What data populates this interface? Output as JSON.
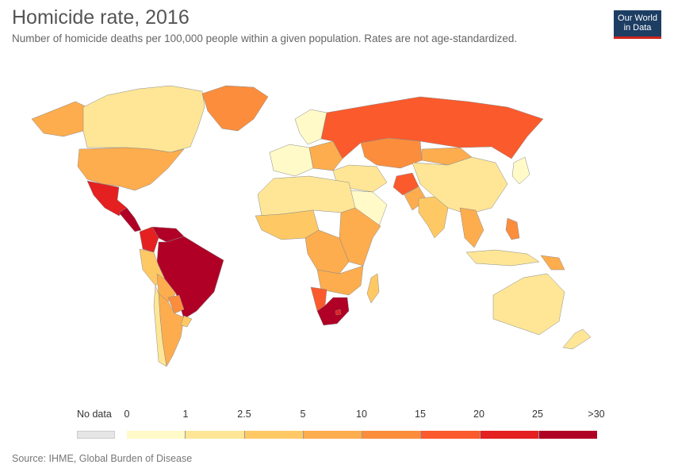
{
  "header": {
    "title": "Homicide rate, 2016",
    "subtitle": "Number of homicide deaths per 100,000 people within a given population. Rates are not age-standardized."
  },
  "logo": {
    "line1": "Our World",
    "line2": "in Data"
  },
  "source": "Source: IHME, Global Burden of Disease",
  "legend": {
    "no_data_label": "No data",
    "no_data_color": "#e6e6e6",
    "ticks": [
      "0",
      "1",
      "2.5",
      "5",
      "10",
      "15",
      "20",
      "25",
      ">30"
    ],
    "colors": [
      "#fffac8",
      "#fee696",
      "#fec965",
      "#fdad4e",
      "#fc8d3c",
      "#fb5a2c",
      "#e42020",
      "#b00026"
    ]
  },
  "regions": [
    {
      "name": "Canada",
      "bin": 1
    },
    {
      "name": "United States",
      "bin": 3
    },
    {
      "name": "Mexico",
      "bin": 6
    },
    {
      "name": "Central America",
      "bin": 7
    },
    {
      "name": "Greenland",
      "bin": 4
    },
    {
      "name": "Alaska",
      "bin": 3
    },
    {
      "name": "Colombia",
      "bin": 6
    },
    {
      "name": "Venezuela",
      "bin": 7
    },
    {
      "name": "Brazil",
      "bin": 7
    },
    {
      "name": "Peru",
      "bin": 2
    },
    {
      "name": "Bolivia",
      "bin": 3
    },
    {
      "name": "Argentina",
      "bin": 3
    },
    {
      "name": "Chile",
      "bin": 1
    },
    {
      "name": "Paraguay",
      "bin": 4
    },
    {
      "name": "Uruguay",
      "bin": 2
    },
    {
      "name": "Western Europe",
      "bin": 0
    },
    {
      "name": "Eastern Europe",
      "bin": 3
    },
    {
      "name": "Scandinavia",
      "bin": 0
    },
    {
      "name": "Russia",
      "bin": 5
    },
    {
      "name": "Kazakhstan",
      "bin": 4
    },
    {
      "name": "Mongolia",
      "bin": 3
    },
    {
      "name": "China",
      "bin": 1
    },
    {
      "name": "Middle East",
      "bin": 1
    },
    {
      "name": "Saudi Arabia",
      "bin": 0
    },
    {
      "name": "Afghanistan",
      "bin": 5
    },
    {
      "name": "Pakistan",
      "bin": 3
    },
    {
      "name": "India",
      "bin": 2
    },
    {
      "name": "Southeast Asia",
      "bin": 3
    },
    {
      "name": "Philippines",
      "bin": 4
    },
    {
      "name": "Indonesia",
      "bin": 1
    },
    {
      "name": "Papua New Guinea",
      "bin": 3
    },
    {
      "name": "Japan",
      "bin": 0
    },
    {
      "name": "North Africa",
      "bin": 1
    },
    {
      "name": "West Africa",
      "bin": 2
    },
    {
      "name": "Central Africa",
      "bin": 3
    },
    {
      "name": "East Africa",
      "bin": 3
    },
    {
      "name": "Southern Africa",
      "bin": 3
    },
    {
      "name": "Namibia",
      "bin": 5
    },
    {
      "name": "South Africa",
      "bin": 7
    },
    {
      "name": "Lesotho",
      "bin": 6
    },
    {
      "name": "Madagascar",
      "bin": 2
    },
    {
      "name": "Australia",
      "bin": 1
    },
    {
      "name": "New Zealand",
      "bin": 1
    }
  ]
}
